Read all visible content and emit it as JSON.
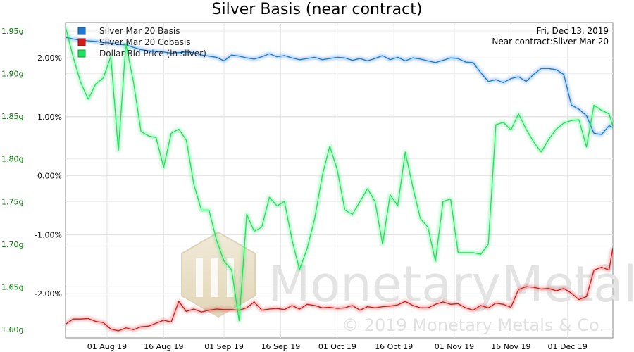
{
  "chart_data": {
    "type": "line",
    "title": "Silver Basis (near contract)",
    "info": [
      "Fri, Dec 13, 2019",
      "Near contract:Silver Mar 20"
    ],
    "x_ticks": [
      "01 Aug 19",
      "16 Aug 19",
      "01 Sep 19",
      "16 Sep 19",
      "01 Oct 19",
      "16 Oct 19",
      "01 Nov 19",
      "16 Nov 19",
      "01 Dec 19"
    ],
    "x_range": [
      "2019-07-21",
      "2019-12-13"
    ],
    "y_left": {
      "range": [
        1.59,
        1.96
      ],
      "ticks": [
        1.6,
        1.65,
        1.7,
        1.75,
        1.8,
        1.85,
        1.9,
        1.95
      ],
      "tick_labels": [
        "1.60g",
        "1.65g",
        "1.70g",
        "1.75g",
        "1.80g",
        "1.85g",
        "1.90g",
        "1.95g"
      ],
      "color": "#007a00"
    },
    "y_right": {
      "range": [
        -2.75,
        2.6
      ],
      "ticks": [
        -2.0,
        -1.0,
        0.0,
        1.0,
        2.0
      ],
      "tick_labels": [
        "-2.00%",
        "-1.00%",
        "0.00%",
        "1.00%",
        "2.00%"
      ],
      "color": "#000000"
    },
    "grid": true,
    "legend_position": "top-left",
    "series": [
      {
        "name": "Silver Mar 20 Basis",
        "color": "#1f78d1",
        "axis": "right",
        "x": [
          "2019-07-21",
          "2019-07-23",
          "2019-07-25",
          "2019-07-27",
          "2019-07-29",
          "2019-07-31",
          "2019-08-02",
          "2019-08-04",
          "2019-08-06",
          "2019-08-08",
          "2019-08-10",
          "2019-08-12",
          "2019-08-14",
          "2019-08-16",
          "2019-08-18",
          "2019-08-20",
          "2019-08-22",
          "2019-08-24",
          "2019-08-26",
          "2019-08-28",
          "2019-08-30",
          "2019-09-01",
          "2019-09-03",
          "2019-09-05",
          "2019-09-07",
          "2019-09-09",
          "2019-09-11",
          "2019-09-13",
          "2019-09-15",
          "2019-09-17",
          "2019-09-19",
          "2019-09-21",
          "2019-09-23",
          "2019-09-25",
          "2019-09-27",
          "2019-09-29",
          "2019-10-01",
          "2019-10-03",
          "2019-10-05",
          "2019-10-07",
          "2019-10-09",
          "2019-10-11",
          "2019-10-13",
          "2019-10-15",
          "2019-10-17",
          "2019-10-19",
          "2019-10-21",
          "2019-10-23",
          "2019-10-25",
          "2019-10-27",
          "2019-10-29",
          "2019-10-31",
          "2019-11-02",
          "2019-11-04",
          "2019-11-06",
          "2019-11-08",
          "2019-11-10",
          "2019-11-12",
          "2019-11-14",
          "2019-11-16",
          "2019-11-18",
          "2019-11-20",
          "2019-11-22",
          "2019-11-24",
          "2019-11-26",
          "2019-11-28",
          "2019-11-30",
          "2019-12-02",
          "2019-12-04",
          "2019-12-06",
          "2019-12-08",
          "2019-12-10",
          "2019-12-12",
          "2019-12-13"
        ],
        "y": [
          2.35,
          2.32,
          2.3,
          2.29,
          2.28,
          2.26,
          2.25,
          2.23,
          2.22,
          2.18,
          2.14,
          2.12,
          2.11,
          2.1,
          2.08,
          2.09,
          2.1,
          2.09,
          2.05,
          2.03,
          2.01,
          1.95,
          2.05,
          2.03,
          2.0,
          1.98,
          2.02,
          2.07,
          2.02,
          2.04,
          2.0,
          1.97,
          1.99,
          2.01,
          1.97,
          1.99,
          2.01,
          2.0,
          1.96,
          1.99,
          1.95,
          1.99,
          2.04,
          1.97,
          2.01,
          1.95,
          2.0,
          1.98,
          1.95,
          1.92,
          1.96,
          2.0,
          1.99,
          1.93,
          1.92,
          1.75,
          1.6,
          1.63,
          1.58,
          1.65,
          1.68,
          1.6,
          1.72,
          1.82,
          1.82,
          1.8,
          1.72,
          1.2,
          1.13,
          1.02,
          0.72,
          0.7,
          0.85,
          0.82
        ]
      },
      {
        "name": "Silver Mar 20 Cobasis",
        "color": "#d11a1a",
        "axis": "right",
        "x": [
          "2019-07-21",
          "2019-07-23",
          "2019-07-25",
          "2019-07-27",
          "2019-07-29",
          "2019-07-31",
          "2019-08-02",
          "2019-08-04",
          "2019-08-06",
          "2019-08-08",
          "2019-08-10",
          "2019-08-12",
          "2019-08-14",
          "2019-08-16",
          "2019-08-18",
          "2019-08-20",
          "2019-08-22",
          "2019-08-24",
          "2019-08-26",
          "2019-08-28",
          "2019-08-30",
          "2019-09-01",
          "2019-09-03",
          "2019-09-05",
          "2019-09-07",
          "2019-09-09",
          "2019-09-11",
          "2019-09-13",
          "2019-09-15",
          "2019-09-17",
          "2019-09-19",
          "2019-09-21",
          "2019-09-23",
          "2019-09-25",
          "2019-09-27",
          "2019-09-29",
          "2019-10-01",
          "2019-10-03",
          "2019-10-05",
          "2019-10-07",
          "2019-10-09",
          "2019-10-11",
          "2019-10-13",
          "2019-10-15",
          "2019-10-17",
          "2019-10-19",
          "2019-10-21",
          "2019-10-23",
          "2019-10-25",
          "2019-10-27",
          "2019-10-29",
          "2019-10-31",
          "2019-11-02",
          "2019-11-04",
          "2019-11-06",
          "2019-11-08",
          "2019-11-10",
          "2019-11-12",
          "2019-11-14",
          "2019-11-16",
          "2019-11-18",
          "2019-11-20",
          "2019-11-22",
          "2019-11-24",
          "2019-11-26",
          "2019-11-28",
          "2019-11-30",
          "2019-12-02",
          "2019-12-04",
          "2019-12-06",
          "2019-12-08",
          "2019-12-10",
          "2019-12-12",
          "2019-12-13"
        ],
        "y": [
          -2.52,
          -2.43,
          -2.43,
          -2.42,
          -2.47,
          -2.49,
          -2.6,
          -2.63,
          -2.58,
          -2.61,
          -2.56,
          -2.55,
          -2.5,
          -2.45,
          -2.48,
          -2.13,
          -2.3,
          -2.26,
          -2.31,
          -2.28,
          -2.26,
          -2.27,
          -2.27,
          -2.28,
          -2.24,
          -2.14,
          -2.28,
          -2.26,
          -2.25,
          -2.27,
          -2.2,
          -2.26,
          -2.18,
          -2.2,
          -2.24,
          -2.23,
          -2.25,
          -2.24,
          -2.2,
          -2.28,
          -2.22,
          -2.24,
          -2.22,
          -2.21,
          -2.19,
          -2.13,
          -2.2,
          -2.24,
          -2.24,
          -2.18,
          -2.14,
          -2.18,
          -2.17,
          -2.24,
          -2.28,
          -2.2,
          -2.24,
          -2.16,
          -2.18,
          -2.23,
          -1.93,
          -1.88,
          -1.89,
          -1.92,
          -1.91,
          -1.95,
          -1.91,
          -1.99,
          -2.1,
          -2.05,
          -1.6,
          -1.55,
          -1.6,
          -1.22
        ]
      },
      {
        "name": "Dollar Bid Price (in silver)",
        "color": "#1ee35a",
        "axis": "left",
        "x": [
          "2019-07-21",
          "2019-07-23",
          "2019-07-25",
          "2019-07-27",
          "2019-07-29",
          "2019-07-31",
          "2019-08-02",
          "2019-08-04",
          "2019-08-06",
          "2019-08-08",
          "2019-08-10",
          "2019-08-12",
          "2019-08-14",
          "2019-08-16",
          "2019-08-18",
          "2019-08-20",
          "2019-08-22",
          "2019-08-24",
          "2019-08-26",
          "2019-08-28",
          "2019-08-30",
          "2019-09-01",
          "2019-09-03",
          "2019-09-05",
          "2019-09-07",
          "2019-09-09",
          "2019-09-11",
          "2019-09-13",
          "2019-09-15",
          "2019-09-17",
          "2019-09-19",
          "2019-09-21",
          "2019-09-23",
          "2019-09-25",
          "2019-09-27",
          "2019-09-29",
          "2019-10-01",
          "2019-10-03",
          "2019-10-05",
          "2019-10-07",
          "2019-10-09",
          "2019-10-11",
          "2019-10-13",
          "2019-10-15",
          "2019-10-17",
          "2019-10-19",
          "2019-10-21",
          "2019-10-23",
          "2019-10-25",
          "2019-10-27",
          "2019-10-29",
          "2019-10-31",
          "2019-11-02",
          "2019-11-04",
          "2019-11-06",
          "2019-11-08",
          "2019-11-10",
          "2019-11-12",
          "2019-11-14",
          "2019-11-16",
          "2019-11-18",
          "2019-11-20",
          "2019-11-22",
          "2019-11-24",
          "2019-11-26",
          "2019-11-28",
          "2019-11-30",
          "2019-12-02",
          "2019-12-04",
          "2019-12-06",
          "2019-12-08",
          "2019-12-10",
          "2019-12-12",
          "2019-12-13"
        ],
        "y": [
          1.955,
          1.92,
          1.89,
          1.87,
          1.888,
          1.895,
          1.92,
          1.81,
          1.935,
          1.89,
          1.832,
          1.827,
          1.825,
          1.79,
          1.83,
          1.835,
          1.822,
          1.77,
          1.74,
          1.74,
          1.705,
          1.68,
          1.67,
          1.61,
          1.735,
          1.715,
          1.72,
          1.755,
          1.745,
          1.75,
          1.705,
          1.67,
          1.695,
          1.73,
          1.78,
          1.815,
          1.787,
          1.74,
          1.735,
          1.75,
          1.765,
          1.75,
          1.7,
          1.758,
          1.745,
          1.808,
          1.767,
          1.73,
          1.72,
          1.68,
          1.75,
          1.753,
          1.69,
          1.69,
          1.69,
          1.688,
          1.7,
          1.84,
          1.843,
          1.834,
          1.853,
          1.835,
          1.82,
          1.808,
          1.823,
          1.835,
          1.842,
          1.845,
          1.846,
          1.814,
          1.863,
          1.857,
          1.853,
          1.838
        ]
      }
    ],
    "watermark": {
      "brand": "MonetaryMetals",
      "registered": "®",
      "copyright": "© 2019 Monetary Metals & Co."
    }
  }
}
